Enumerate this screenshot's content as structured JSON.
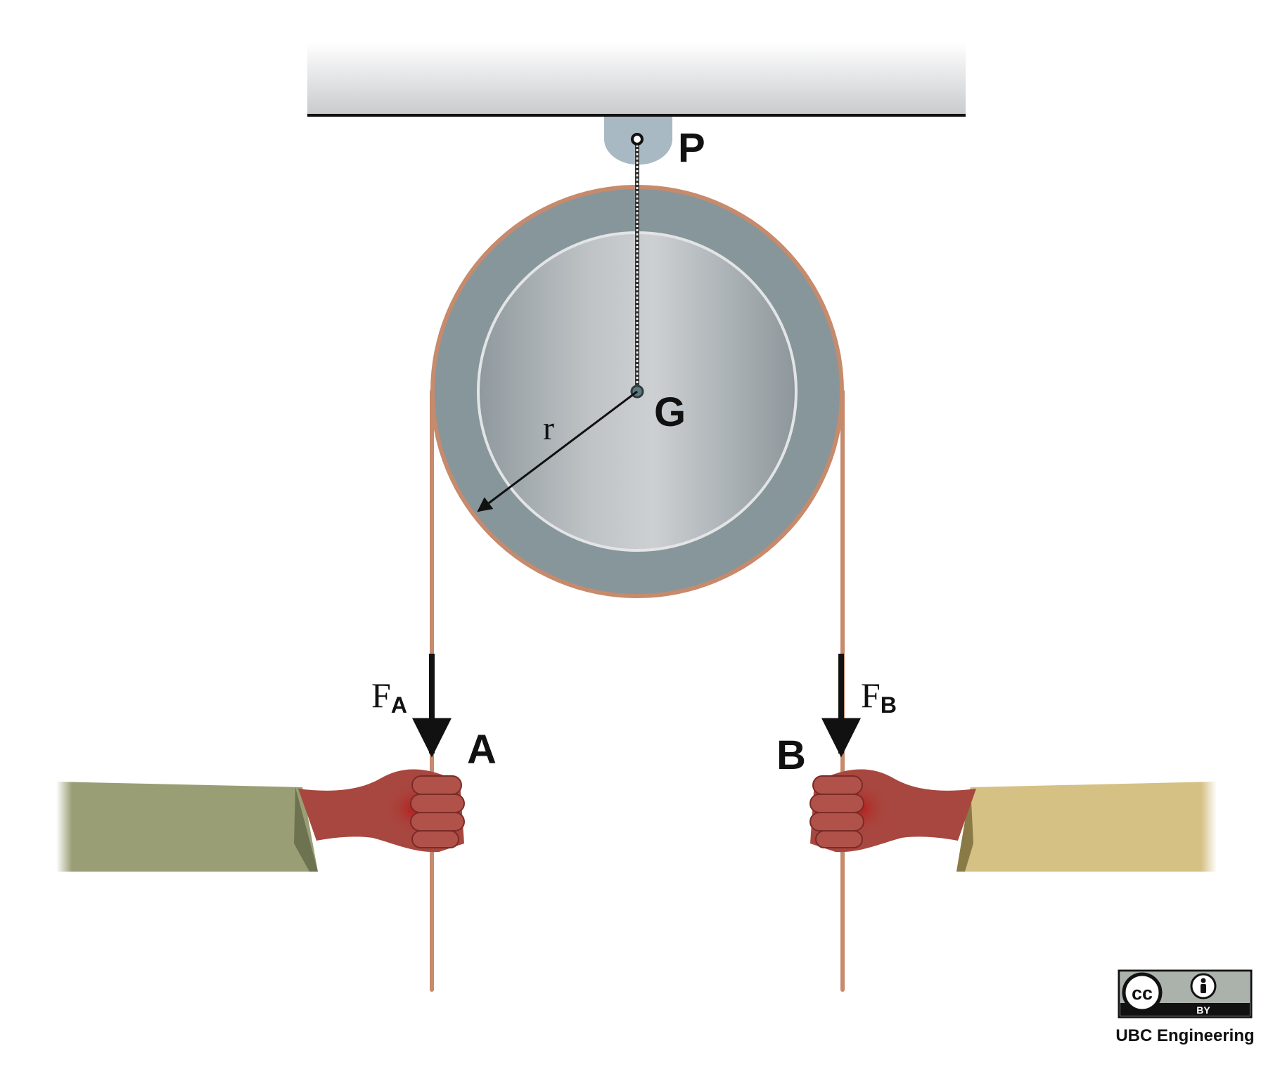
{
  "labels": {
    "pivot": "P",
    "center": "G",
    "radius": "r",
    "point_a": "A",
    "point_b": "B",
    "force_a_main": "F",
    "force_a_sub": "A",
    "force_b_main": "F",
    "force_b_sub": "B"
  },
  "license": {
    "cc": "cc",
    "by": "BY",
    "credit": "UBC Engineering"
  },
  "colors": {
    "ceiling_top": "#ffffff",
    "ceiling_bottom": "#c8cacc",
    "hanger": "#a9b9c3",
    "pulley_rim": "#87969b",
    "pulley_face_light": "#c8cbce",
    "pulley_face_dark": "#8e989c",
    "rope": "#c68a6c",
    "glove": "#a8473f",
    "sleeve_left": "#9a9e74",
    "sleeve_right": "#d5c184",
    "arrow": "#111111"
  },
  "icons": [
    "creative-commons-icon",
    "attribution-icon"
  ]
}
